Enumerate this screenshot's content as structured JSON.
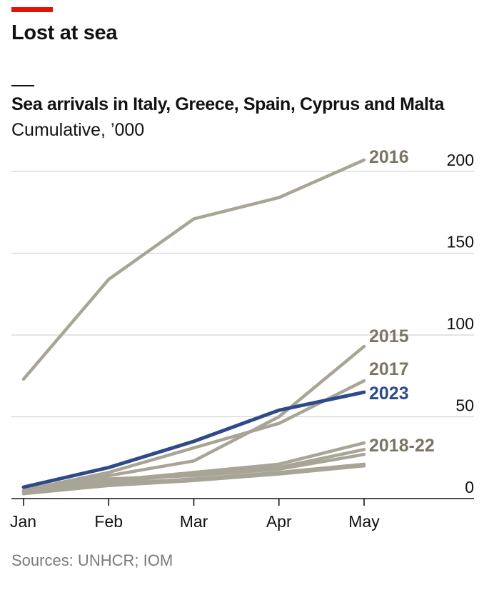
{
  "header": {
    "headline": "Lost at sea",
    "title": "Sea arrivals in Italy, Greece, Spain, Cyprus and Malta",
    "subtitle": "Cumulative, ’000"
  },
  "source": "Sources: UNHCR; IOM",
  "colors": {
    "accent_red": "#E3120B",
    "highlight_series": "#2E4A8A",
    "other_series": "#A8A596",
    "label_other": "#7A7665",
    "grid": "#d4d4d4",
    "axis": "#121212"
  },
  "chart_data": {
    "type": "line",
    "title": "Sea arrivals in Italy, Greece, Spain, Cyprus and Malta",
    "subtitle": "Cumulative, ’000",
    "categories": [
      "Jan",
      "Feb",
      "Mar",
      "Apr",
      "May"
    ],
    "ylim": [
      0,
      200
    ],
    "yticks": [
      0,
      50,
      100,
      150,
      200
    ],
    "y_axis_side": "right",
    "grid": true,
    "series": [
      {
        "name": "2016",
        "label": "2016",
        "values": [
          73,
          134,
          171,
          184,
          207
        ],
        "highlight": false
      },
      {
        "name": "2015",
        "label": "2015",
        "values": [
          4,
          14,
          23,
          50,
          93
        ],
        "highlight": false
      },
      {
        "name": "2017",
        "label": "2017",
        "values": [
          5,
          16,
          31,
          46,
          72
        ],
        "highlight": false
      },
      {
        "name": "2018",
        "label": "2018-22",
        "values": [
          4,
          11,
          16,
          21,
          34
        ],
        "highlight": false
      },
      {
        "name": "2019",
        "label": "",
        "values": [
          3,
          10,
          15,
          19,
          30
        ],
        "highlight": false
      },
      {
        "name": "2020",
        "label": "",
        "values": [
          4,
          12,
          14,
          18,
          27
        ],
        "highlight": false
      },
      {
        "name": "2021",
        "label": "",
        "values": [
          3,
          8,
          11,
          15,
          20
        ],
        "highlight": false
      },
      {
        "name": "2022",
        "label": "",
        "values": [
          4,
          9,
          12,
          16,
          21
        ],
        "highlight": false
      },
      {
        "name": "2023",
        "label": "2023",
        "values": [
          7,
          19,
          35,
          54,
          65
        ],
        "highlight": true
      }
    ]
  }
}
